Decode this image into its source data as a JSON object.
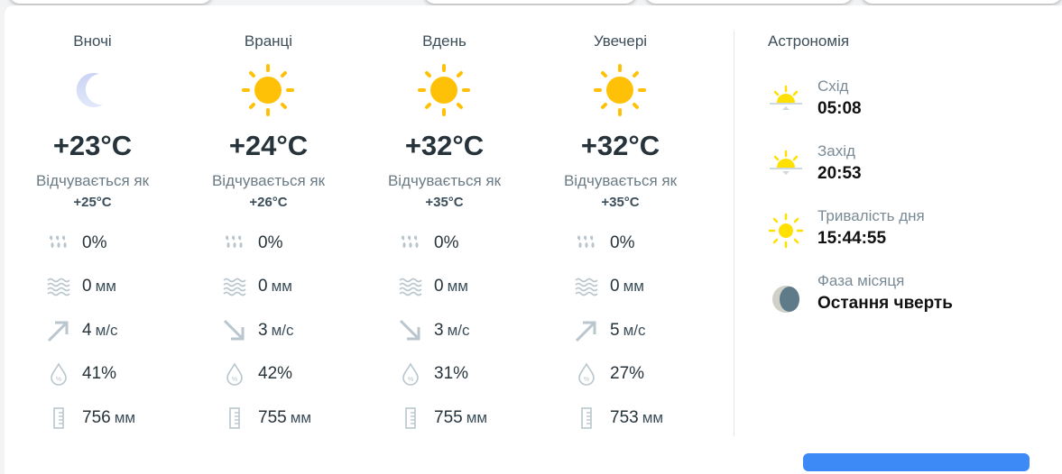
{
  "periods": [
    {
      "title": "Вночі",
      "icon": "moon-icon",
      "temp": "+23°C",
      "feels_label": "Відчувається як",
      "feels": "+25°C",
      "precip_prob": "0%",
      "precip": "0",
      "precip_unit": "мм",
      "wind_dir": "north-east",
      "wind": "4",
      "wind_unit": "м/с",
      "humidity": "41%",
      "pressure": "756",
      "pressure_unit": "мм"
    },
    {
      "title": "Вранці",
      "icon": "sun-icon",
      "temp": "+24°C",
      "feels_label": "Відчувається як",
      "feels": "+26°C",
      "precip_prob": "0%",
      "precip": "0",
      "precip_unit": "мм",
      "wind_dir": "south-east",
      "wind": "3",
      "wind_unit": "м/с",
      "humidity": "42%",
      "pressure": "755",
      "pressure_unit": "мм"
    },
    {
      "title": "Вдень",
      "icon": "sun-icon",
      "temp": "+32°C",
      "feels_label": "Відчувається як",
      "feels": "+35°C",
      "precip_prob": "0%",
      "precip": "0",
      "precip_unit": "мм",
      "wind_dir": "south-east",
      "wind": "3",
      "wind_unit": "м/с",
      "humidity": "31%",
      "pressure": "755",
      "pressure_unit": "мм"
    },
    {
      "title": "Увечері",
      "icon": "sun-icon",
      "temp": "+32°C",
      "feels_label": "Відчувається як",
      "feels": "+35°C",
      "precip_prob": "0%",
      "precip": "0",
      "precip_unit": "мм",
      "wind_dir": "north-east",
      "wind": "5",
      "wind_unit": "м/с",
      "humidity": "27%",
      "pressure": "753",
      "pressure_unit": "мм"
    }
  ],
  "astronomy": {
    "title": "Астрономія",
    "sunrise": {
      "label": "Схід",
      "value": "05:08"
    },
    "sunset": {
      "label": "Захід",
      "value": "20:53"
    },
    "day_length": {
      "label": "Тривалість дня",
      "value": "15:44:55"
    },
    "moon_phase": {
      "label": "Фаза місяця",
      "value": "Остання чверть"
    }
  },
  "colors": {
    "sun": "#ffc107",
    "astro_sun": "#ffe000",
    "moon": "#d6def8",
    "icon_gray": "#b9c6ce",
    "button": "#3d8af7"
  }
}
